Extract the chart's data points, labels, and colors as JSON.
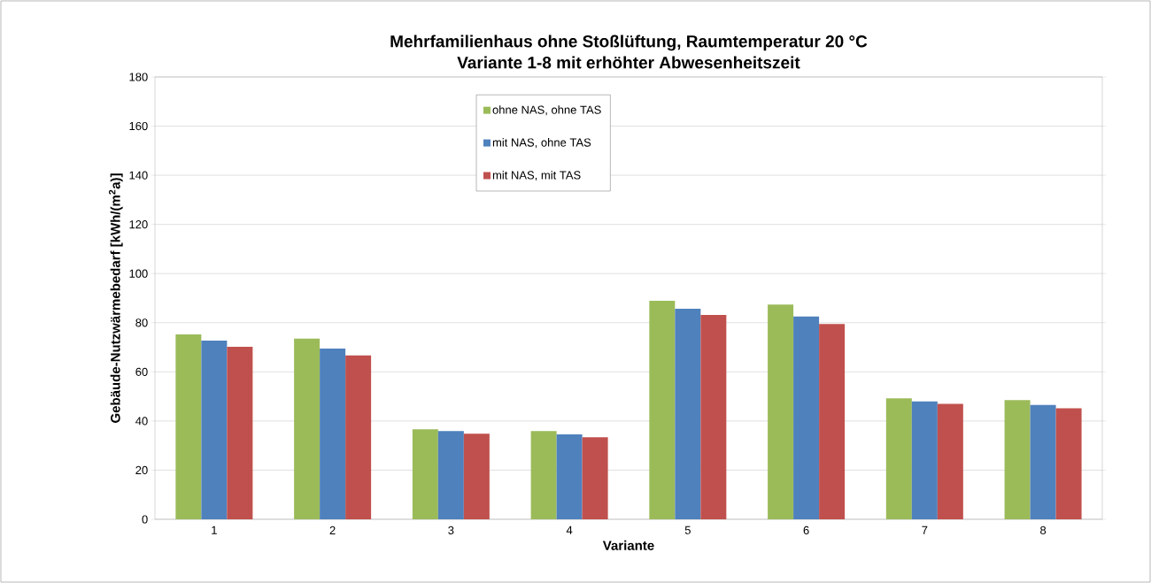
{
  "chart_data": {
    "type": "bar",
    "title": "Mehrfamilienhaus ohne Stoßlüftung, Raumtemperatur 20 °C",
    "subtitle": "Variante 1-8 mit erhöhter Abwesenheitszeit",
    "xlabel": "Variante",
    "ylabel": "Gebäude-Nutzwärmebedarf [kWh/(m$^{2}$a)]",
    "categories": [
      "1",
      "2",
      "3",
      "4",
      "5",
      "6",
      "7",
      "8"
    ],
    "series": [
      {
        "name": "ohne NAS, ohne TAS",
        "color": "#9bbb59",
        "values": [
          75.2,
          73.5,
          36.6,
          35.9,
          88.9,
          87.4,
          49.2,
          48.5
        ]
      },
      {
        "name": "mit NAS, ohne TAS",
        "color": "#4f81bd",
        "values": [
          72.7,
          69.5,
          35.9,
          34.6,
          85.7,
          82.5,
          48.0,
          46.5
        ]
      },
      {
        "name": "mit NAS, mit TAS",
        "color": "#c0504d",
        "values": [
          70.2,
          66.7,
          34.8,
          33.4,
          83.2,
          79.5,
          47.0,
          45.2
        ]
      }
    ],
    "ylim": [
      0,
      180
    ],
    "yticks": [
      0,
      20,
      40,
      60,
      80,
      100,
      120,
      140,
      160,
      180
    ],
    "grid": "y",
    "legend": "top"
  }
}
